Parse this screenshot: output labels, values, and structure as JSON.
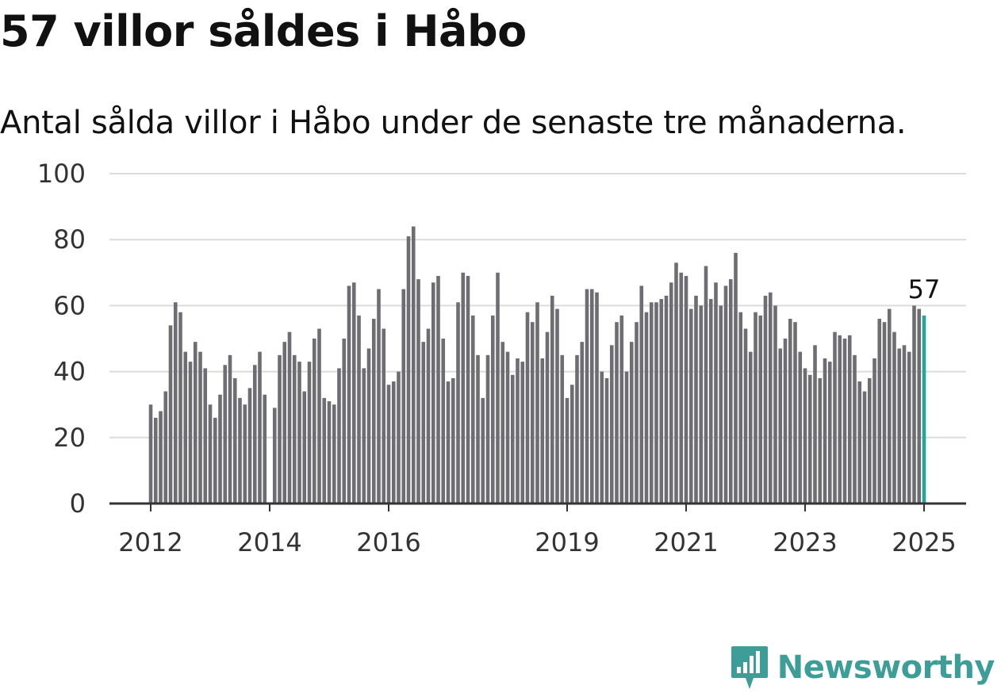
{
  "header": {
    "title": "57 villor såldes i Håbo",
    "subtitle": "Antal sålda villor i Håbo under de senaste tre månaderna."
  },
  "branding": {
    "logo_text": "Newsworthy",
    "logo_icon": "bar-chart-badge-icon",
    "accent_color": "#3d9e98"
  },
  "chart_data": {
    "type": "bar",
    "title": "57 villor såldes i Håbo",
    "subtitle": "Antal sålda villor i Håbo under de senaste tre månaderna.",
    "xlabel": "",
    "ylabel": "",
    "x_start": "2012-01",
    "x_step": "month",
    "ylim": [
      0,
      100
    ],
    "yticks": [
      0,
      20,
      40,
      60,
      80,
      100
    ],
    "xticks": [
      "2012",
      "2014",
      "2016",
      "2019",
      "2021",
      "2023",
      "2025"
    ],
    "grid": true,
    "bar_color": "#6e6d72",
    "highlight_color": "#26a69a",
    "highlight_label": "57",
    "values": [
      30,
      26,
      28,
      34,
      54,
      61,
      58,
      46,
      43,
      49,
      46,
      41,
      30,
      26,
      33,
      42,
      45,
      38,
      32,
      30,
      35,
      42,
      46,
      33,
      0,
      29,
      45,
      49,
      52,
      45,
      43,
      34,
      43,
      50,
      53,
      32,
      31,
      30,
      41,
      50,
      66,
      67,
      57,
      41,
      47,
      56,
      65,
      53,
      36,
      37,
      40,
      65,
      81,
      84,
      68,
      49,
      53,
      67,
      69,
      50,
      37,
      38,
      61,
      70,
      69,
      57,
      45,
      32,
      45,
      57,
      70,
      49,
      46,
      39,
      44,
      43,
      58,
      55,
      61,
      44,
      52,
      63,
      59,
      45,
      32,
      36,
      45,
      49,
      65,
      65,
      64,
      40,
      38,
      48,
      55,
      57,
      40,
      49,
      55,
      66,
      58,
      61,
      61,
      62,
      63,
      67,
      73,
      70,
      69,
      59,
      63,
      60,
      72,
      62,
      67,
      60,
      66,
      68,
      76,
      58,
      53,
      46,
      58,
      57,
      63,
      64,
      60,
      47,
      50,
      56,
      55,
      46,
      41,
      39,
      48,
      38,
      44,
      43,
      52,
      51,
      50,
      51,
      45,
      37,
      34,
      38,
      44,
      56,
      55,
      59,
      52,
      47,
      48,
      46,
      60,
      59,
      57
    ]
  }
}
